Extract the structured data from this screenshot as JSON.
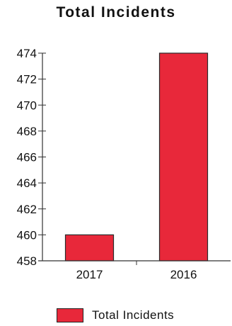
{
  "chart_data": {
    "type": "bar",
    "title": "Total Incidents",
    "categories": [
      "2017",
      "2016"
    ],
    "series": [
      {
        "name": "Total Incidents",
        "values": [
          460,
          474
        ],
        "color": "#e8283a"
      }
    ],
    "xlabel": "",
    "ylabel": "",
    "ylim": [
      458,
      474
    ],
    "yticks": [
      458,
      460,
      462,
      464,
      466,
      468,
      470,
      472,
      474
    ],
    "grid": false,
    "legend_position": "bottom"
  }
}
